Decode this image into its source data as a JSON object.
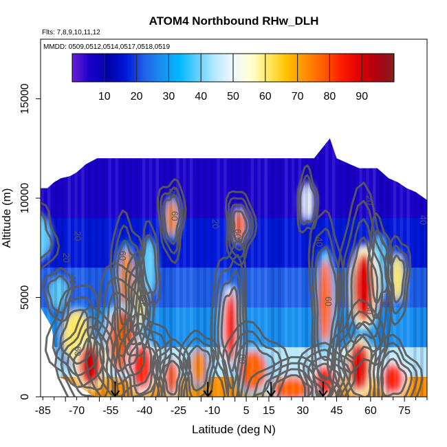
{
  "chart_data": {
    "type": "heatmap",
    "title": "ATOM4 Northbound RHw_DLH",
    "flights_note": "Flts: 7,8,9,10,11,12",
    "mmdd_note": "MMDD: 0509,0512,0514,0517,0518,0519",
    "xlabel": "Latitude (deg N)",
    "ylabel": "Altitude (m)",
    "xlim": [
      -86,
      85
    ],
    "ylim": [
      0,
      18000
    ],
    "x_ticks": [
      -85,
      -70,
      -55,
      -40,
      -25,
      -10,
      5,
      15,
      30,
      45,
      60,
      75
    ],
    "x_tick_labels": [
      "-85",
      "-70",
      "-55",
      "-40",
      "-25",
      "-10",
      "5",
      "15",
      "30",
      "45",
      "60",
      "75"
    ],
    "y_ticks": [
      0,
      5000,
      10000,
      15000
    ],
    "y_tick_labels": [
      "0",
      "5000",
      "10000",
      "15000"
    ],
    "colorbar": {
      "range": [
        0,
        100
      ],
      "ticks": [
        10,
        20,
        30,
        40,
        50,
        60,
        70,
        80,
        90
      ],
      "tick_labels": [
        "10",
        "20",
        "30",
        "40",
        "50",
        "60",
        "70",
        "80",
        "90"
      ],
      "colors": [
        "#6a1fd6",
        "#1a00c8",
        "#0000a8",
        "#0018d8",
        "#2060e8",
        "#1890f0",
        "#00b8ff",
        "#60d0ff",
        "#b8e8ff",
        "#f0f8ff",
        "#ffffd0",
        "#ffe860",
        "#ffc000",
        "#ff9000",
        "#ff6000",
        "#ff2000",
        "#e00000",
        "#b00010",
        "#802020"
      ]
    },
    "contour_levels": [
      20,
      40,
      60,
      80
    ],
    "contour_labels": [
      {
        "text": "20",
        "lat": -29,
        "alt": 10250
      },
      {
        "text": "60",
        "lat": -28,
        "alt": 9100
      },
      {
        "text": "20",
        "lat": -71,
        "alt": 8100
      },
      {
        "text": "20",
        "lat": -76,
        "alt": 7000
      },
      {
        "text": "40",
        "lat": -73,
        "alt": 5900
      },
      {
        "text": "60",
        "lat": -51,
        "alt": 7100
      },
      {
        "text": "60",
        "lat": -42,
        "alt": 4900
      },
      {
        "text": "80",
        "lat": -71,
        "alt": 2300
      },
      {
        "text": "20",
        "lat": -10,
        "alt": 8700
      },
      {
        "text": "60",
        "lat": 0,
        "alt": 8200
      },
      {
        "text": "80",
        "lat": 2,
        "alt": 1900
      },
      {
        "text": "40",
        "lat": 36,
        "alt": 7800
      },
      {
        "text": "60",
        "lat": 40,
        "alt": 4800
      },
      {
        "text": "60",
        "lat": 58,
        "alt": 4400
      },
      {
        "text": "20",
        "lat": 58,
        "alt": 9900
      },
      {
        "text": "40",
        "lat": 82,
        "alt": 8900
      }
    ],
    "flight_markers_lat": [
      -53,
      -12,
      16,
      39
    ],
    "column_tops_alt": [
      {
        "lat": -86,
        "alt": 10500
      },
      {
        "lat": -83,
        "alt": 10500
      },
      {
        "lat": -80,
        "alt": 10800
      },
      {
        "lat": -77,
        "alt": 11000
      },
      {
        "lat": -73,
        "alt": 11100
      },
      {
        "lat": -70,
        "alt": 11300
      },
      {
        "lat": -66,
        "alt": 11700
      },
      {
        "lat": -61,
        "alt": 12000
      },
      {
        "lat": -55,
        "alt": 12000
      },
      {
        "lat": -40,
        "alt": 12000
      },
      {
        "lat": -25,
        "alt": 12000
      },
      {
        "lat": -10,
        "alt": 12000
      },
      {
        "lat": 5,
        "alt": 12000
      },
      {
        "lat": 20,
        "alt": 12000
      },
      {
        "lat": 35,
        "alt": 12000
      },
      {
        "lat": 42,
        "alt": 13000
      },
      {
        "lat": 45,
        "alt": 12000
      },
      {
        "lat": 55,
        "alt": 11500
      },
      {
        "lat": 63,
        "alt": 11500
      },
      {
        "lat": 68,
        "alt": 11000
      },
      {
        "lat": 72,
        "alt": 10800
      },
      {
        "lat": 76,
        "alt": 10500
      },
      {
        "lat": 80,
        "alt": 10300
      },
      {
        "lat": 85,
        "alt": 9900
      }
    ],
    "columns_bottom_alt": [
      {
        "lat": -86,
        "alt": 4500
      },
      {
        "lat": -81,
        "alt": 3500
      },
      {
        "lat": -78,
        "alt": 1000
      },
      {
        "lat": -70,
        "alt": 600
      },
      {
        "lat": -62,
        "alt": 0
      },
      {
        "lat": 85,
        "alt": 0
      }
    ],
    "rh_features": [
      {
        "lat": -88,
        "alt": 8000,
        "value": 40,
        "w": 10,
        "h": 2000
      },
      {
        "lat": -78,
        "alt": 5200,
        "value": 40,
        "w": 6,
        "h": 1500
      },
      {
        "lat": -70,
        "alt": 3000,
        "value": 60,
        "w": 10,
        "h": 2400
      },
      {
        "lat": -64,
        "alt": 1600,
        "value": 90,
        "w": 8,
        "h": 1800
      },
      {
        "lat": -50,
        "alt": 2800,
        "value": 80,
        "w": 10,
        "h": 2800
      },
      {
        "lat": -48,
        "alt": 5800,
        "value": 70,
        "w": 4,
        "h": 3000
      },
      {
        "lat": -41,
        "alt": 1500,
        "value": 85,
        "w": 7,
        "h": 2000
      },
      {
        "lat": -43,
        "alt": 4500,
        "value": 60,
        "w": 4,
        "h": 2500
      },
      {
        "lat": -28,
        "alt": 9000,
        "value": 70,
        "w": 3,
        "h": 1600
      },
      {
        "lat": -28,
        "alt": 1000,
        "value": 80,
        "w": 4,
        "h": 1400
      },
      {
        "lat": -16,
        "alt": 1500,
        "value": 70,
        "w": 5,
        "h": 1500
      },
      {
        "lat": -2,
        "alt": 3500,
        "value": 85,
        "w": 4,
        "h": 3200
      },
      {
        "lat": 2,
        "alt": 8600,
        "value": 80,
        "w": 3,
        "h": 1300
      },
      {
        "lat": 8,
        "alt": 1300,
        "value": 75,
        "w": 10,
        "h": 1800
      },
      {
        "lat": 25,
        "alt": 400,
        "value": 80,
        "w": 15,
        "h": 900
      },
      {
        "lat": 40,
        "alt": 4800,
        "value": 75,
        "w": 4,
        "h": 4000
      },
      {
        "lat": 40,
        "alt": 800,
        "value": 85,
        "w": 7,
        "h": 1300
      },
      {
        "lat": 57,
        "alt": 5500,
        "value": 90,
        "w": 7,
        "h": 3200
      },
      {
        "lat": 55,
        "alt": 1500,
        "value": 90,
        "w": 7,
        "h": 2200
      },
      {
        "lat": 70,
        "alt": 900,
        "value": 85,
        "w": 7,
        "h": 1300
      },
      {
        "lat": 72,
        "alt": 6000,
        "value": 60,
        "w": 3,
        "h": 2000
      },
      {
        "lat": 32,
        "alt": 9800,
        "value": 50,
        "w": 3,
        "h": 1600
      },
      {
        "lat": -38,
        "alt": 6500,
        "value": 40,
        "w": 4,
        "h": 2600
      },
      {
        "lat": 64,
        "alt": 6500,
        "value": 40,
        "w": 5,
        "h": 3000
      }
    ]
  }
}
